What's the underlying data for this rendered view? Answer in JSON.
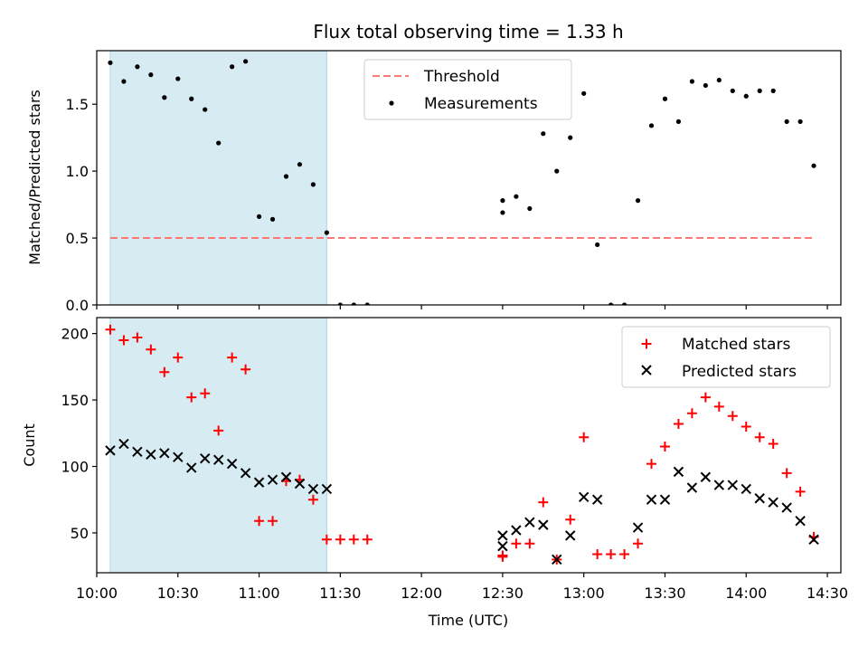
{
  "chart_data": [
    {
      "type": "scatter",
      "panel": "top",
      "title": "Flux total observing time = 1.33 h",
      "xlabel": "",
      "ylabel": "Matched/Predicted stars",
      "xlim": [
        "10:00",
        "14:35"
      ],
      "ylim": [
        0,
        1.9
      ],
      "yticks": [
        0.0,
        0.5,
        1.0,
        1.5
      ],
      "ytick_labels": [
        "0.0",
        "0.5",
        "1.0",
        "1.5"
      ],
      "shaded_x_range": [
        "10:05",
        "11:25"
      ],
      "shaded_color": "#add8e6",
      "legend_position": "upper center",
      "series": [
        {
          "name": "Threshold",
          "style": "dashed-line",
          "color": "#ff7777",
          "x": [
            "10:05",
            "14:25"
          ],
          "y": [
            0.5,
            0.5
          ]
        },
        {
          "name": "Measurements",
          "style": "dot",
          "color": "#000000",
          "x": [
            "10:05",
            "10:10",
            "10:15",
            "10:20",
            "10:25",
            "10:30",
            "10:35",
            "10:40",
            "10:45",
            "10:50",
            "10:55",
            "11:00",
            "11:05",
            "11:10",
            "11:15",
            "11:20",
            "11:25",
            "11:30",
            "11:35",
            "11:40",
            "12:30",
            "12:30",
            "12:35",
            "12:40",
            "12:45",
            "12:50",
            "12:55",
            "13:00",
            "13:05",
            "13:10",
            "13:15",
            "13:20",
            "13:25",
            "13:30",
            "13:35",
            "13:40",
            "13:45",
            "13:50",
            "13:55",
            "14:00",
            "14:05",
            "14:10",
            "14:15",
            "14:20",
            "14:25"
          ],
          "y": [
            1.81,
            1.67,
            1.78,
            1.72,
            1.55,
            1.69,
            1.54,
            1.46,
            1.21,
            1.78,
            1.82,
            0.66,
            0.64,
            0.96,
            1.05,
            0.9,
            0.54,
            0.0,
            0.0,
            0.0,
            0.78,
            0.69,
            0.81,
            0.72,
            1.28,
            1.0,
            1.25,
            1.58,
            0.45,
            0.0,
            0.0,
            0.78,
            1.34,
            1.54,
            1.37,
            1.67,
            1.64,
            1.68,
            1.6,
            1.56,
            1.6,
            1.6,
            1.37,
            1.37,
            1.04
          ]
        }
      ]
    },
    {
      "type": "scatter",
      "panel": "bottom",
      "title": "",
      "xlabel": "Time (UTC)",
      "ylabel": "Count",
      "xlim": [
        "10:00",
        "14:35"
      ],
      "ylim": [
        20,
        212
      ],
      "yticks": [
        50,
        100,
        150,
        200
      ],
      "ytick_labels": [
        "50",
        "100",
        "150",
        "200"
      ],
      "xticks": [
        "10:00",
        "10:30",
        "11:00",
        "11:30",
        "12:00",
        "12:30",
        "13:00",
        "13:30",
        "14:00",
        "14:30"
      ],
      "shaded_x_range": [
        "10:05",
        "11:25"
      ],
      "shaded_color": "#add8e6",
      "legend_position": "upper right",
      "series": [
        {
          "name": "Matched stars",
          "style": "plus",
          "color": "#ff0000",
          "x": [
            "10:05",
            "10:10",
            "10:15",
            "10:20",
            "10:25",
            "10:30",
            "10:35",
            "10:40",
            "10:45",
            "10:50",
            "10:55",
            "11:00",
            "11:05",
            "11:10",
            "11:15",
            "11:20",
            "11:25",
            "11:30",
            "11:35",
            "11:40",
            "12:30",
            "12:30",
            "12:35",
            "12:40",
            "12:45",
            "12:50",
            "12:55",
            "13:00",
            "13:05",
            "13:10",
            "13:15",
            "13:20",
            "13:25",
            "13:30",
            "13:35",
            "13:40",
            "13:45",
            "13:50",
            "13:55",
            "14:00",
            "14:05",
            "14:10",
            "14:15",
            "14:20",
            "14:25"
          ],
          "y": [
            203,
            195,
            197,
            188,
            171,
            182,
            152,
            155,
            127,
            182,
            173,
            59,
            59,
            89,
            90,
            75,
            45,
            45,
            45,
            45,
            33,
            32,
            42,
            42,
            73,
            30,
            60,
            122,
            34,
            34,
            34,
            42,
            102,
            115,
            132,
            140,
            152,
            145,
            138,
            130,
            122,
            117,
            95,
            81,
            47
          ]
        },
        {
          "name": "Predicted stars",
          "style": "x",
          "color": "#000000",
          "x": [
            "10:05",
            "10:10",
            "10:15",
            "10:20",
            "10:25",
            "10:30",
            "10:35",
            "10:40",
            "10:45",
            "10:50",
            "10:55",
            "11:00",
            "11:05",
            "11:10",
            "11:15",
            "11:20",
            "11:25",
            "12:30",
            "12:30",
            "12:35",
            "12:40",
            "12:45",
            "12:50",
            "12:55",
            "13:00",
            "13:05",
            "13:20",
            "13:25",
            "13:30",
            "13:35",
            "13:40",
            "13:45",
            "13:50",
            "13:55",
            "14:00",
            "14:05",
            "14:10",
            "14:15",
            "14:20",
            "14:25"
          ],
          "y": [
            112,
            117,
            111,
            109,
            110,
            107,
            99,
            106,
            105,
            102,
            95,
            88,
            90,
            92,
            87,
            83,
            83,
            40,
            48,
            52,
            58,
            56,
            30,
            48,
            77,
            75,
            54,
            75,
            75,
            96,
            84,
            92,
            86,
            86,
            83,
            76,
            73,
            69,
            59,
            45
          ]
        }
      ]
    }
  ]
}
